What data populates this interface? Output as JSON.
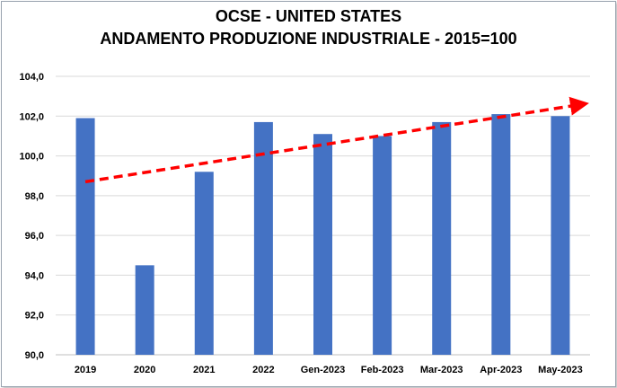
{
  "chart_data": {
    "type": "bar",
    "title": "OCSE - UNITED STATES",
    "subtitle": "ANDAMENTO PRODUZIONE INDUSTRIALE - 2015=100",
    "categories": [
      "2019",
      "2020",
      "2021",
      "2022",
      "Gen-2023",
      "Feb-2023",
      "Mar-2023",
      "Apr-2023",
      "May-2023"
    ],
    "values": [
      101.9,
      94.5,
      99.2,
      101.7,
      101.1,
      101.0,
      101.7,
      102.1,
      102.0
    ],
    "ylim": [
      90,
      104
    ],
    "yticks": [
      90,
      92,
      94,
      96,
      98,
      100,
      102,
      104
    ],
    "y_tick_decimals": 1,
    "grid": true,
    "bar_color": "#4472c4",
    "trendline": {
      "style": "dashed-arrow",
      "color": "#ff0000",
      "start": {
        "x": "2019",
        "y": 98.7
      },
      "end": {
        "x": "May-2023",
        "y": 102.6
      }
    }
  }
}
